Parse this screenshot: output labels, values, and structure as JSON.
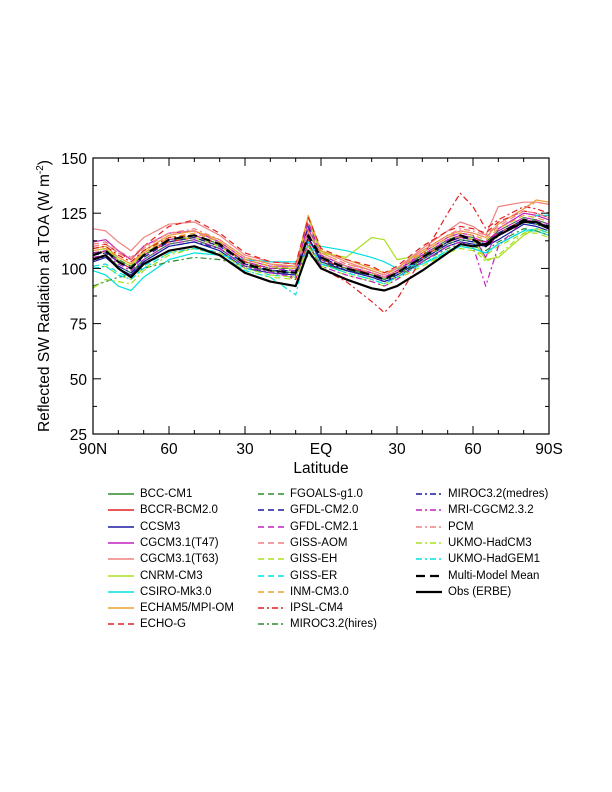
{
  "chart_data": {
    "type": "line",
    "ylabel_main": "Reflected SW Radiation at TOA (W m",
    "ylabel_sup": "-2",
    "ylabel_end": ")",
    "xlabel": "Latitude",
    "x_ticks": [
      {
        "x": 90,
        "label": "90N"
      },
      {
        "x": 60,
        "label": "60"
      },
      {
        "x": 30,
        "label": "30"
      },
      {
        "x": 0,
        "label": "EQ"
      },
      {
        "x": -30,
        "label": "30"
      },
      {
        "x": -60,
        "label": "60"
      },
      {
        "x": -90,
        "label": "90S"
      }
    ],
    "y_ticks": [
      25,
      50,
      75,
      100,
      125,
      150
    ],
    "xlim": [
      90,
      -90
    ],
    "ylim": [
      25,
      150
    ],
    "grid": false,
    "legend_position": "below",
    "series": [
      {
        "name": "BCC-CM1",
        "color": "#2e8b2e",
        "dash": "",
        "values": [
          104,
          106,
          101,
          98,
          104,
          111,
          113,
          109,
          101,
          99,
          98,
          110,
          102,
          99,
          97,
          95,
          97,
          104,
          111,
          113,
          112,
          111,
          115,
          121,
          120,
          118
        ]
      },
      {
        "name": "BCCR-BCM2.0",
        "color": "#e02020",
        "dash": "",
        "values": [
          106,
          108,
          103,
          100,
          106,
          112,
          114,
          110,
          103,
          100,
          100,
          113,
          104,
          100,
          98,
          96,
          98,
          105,
          112,
          114,
          113,
          112,
          116,
          122,
          121,
          119
        ]
      },
      {
        "name": "CCSM3",
        "color": "#1a1aa0",
        "dash": "",
        "values": [
          103,
          105,
          100,
          97,
          103,
          110,
          112,
          108,
          100,
          98,
          97,
          114,
          103,
          99,
          96,
          94,
          96,
          103,
          110,
          112,
          111,
          110,
          113,
          120,
          119,
          117
        ]
      },
      {
        "name": "CGCM3.1(T47)",
        "color": "#c020c0",
        "dash": "",
        "values": [
          112,
          113,
          108,
          104,
          110,
          116,
          117,
          112,
          104,
          101,
          101,
          118,
          106,
          101,
          98,
          96,
          99,
          107,
          114,
          116,
          115,
          105,
          118,
          125,
          124,
          122
        ]
      },
      {
        "name": "CGCM3.1(T63)",
        "color": "#f08080",
        "dash": "",
        "values": [
          118,
          117,
          112,
          108,
          114,
          120,
          121,
          115,
          106,
          103,
          102,
          120,
          108,
          103,
          99,
          97,
          100,
          109,
          117,
          121,
          119,
          115,
          128,
          130,
          130,
          129
        ]
      },
      {
        "name": "CNRM-CM3",
        "color": "#a8e020",
        "dash": "",
        "values": [
          108,
          109,
          104,
          101,
          107,
          113,
          114,
          110,
          103,
          100,
          100,
          123,
          107,
          105,
          114,
          113,
          104,
          106,
          112,
          115,
          113,
          104,
          105,
          115,
          118,
          116
        ]
      },
      {
        "name": "CSIRO-Mk3.0",
        "color": "#00e0e0",
        "dash": "",
        "values": [
          99,
          97,
          92,
          90,
          96,
          104,
          107,
          106,
          104,
          103,
          103,
          107,
          110,
          108,
          105,
          103,
          100,
          102,
          107,
          110,
          109,
          107,
          111,
          117,
          117,
          115
        ]
      },
      {
        "name": "ECHAM5/MPI-OM",
        "color": "#e8a030",
        "dash": "",
        "values": [
          109,
          110,
          105,
          102,
          108,
          115,
          117,
          113,
          105,
          102,
          101,
          124,
          108,
          104,
          100,
          98,
          100,
          108,
          115,
          117,
          116,
          114,
          120,
          127,
          131,
          130
        ]
      },
      {
        "name": "ECHO-G",
        "color": "#e02020",
        "dash": "6,4",
        "values": [
          110,
          111,
          107,
          104,
          110,
          119,
          122,
          116,
          107,
          103,
          102,
          123,
          109,
          104,
          101,
          98,
          101,
          110,
          117,
          119,
          118,
          116,
          121,
          126,
          125,
          123
        ]
      },
      {
        "name": "FGOALS-g1.0",
        "color": "#2e8b2e",
        "dash": "6,4",
        "values": [
          107,
          108,
          104,
          101,
          106,
          113,
          115,
          111,
          103,
          100,
          100,
          116,
          106,
          101,
          98,
          96,
          99,
          106,
          113,
          115,
          114,
          112,
          117,
          123,
          122,
          120
        ]
      },
      {
        "name": "GFDL-CM2.0",
        "color": "#1a1aa0",
        "dash": "6,4",
        "values": [
          106,
          107,
          103,
          100,
          105,
          112,
          114,
          110,
          102,
          99,
          99,
          119,
          105,
          100,
          97,
          95,
          98,
          105,
          112,
          114,
          113,
          111,
          116,
          122,
          121,
          119
        ]
      },
      {
        "name": "GFDL-CM2.1",
        "color": "#c020c0",
        "dash": "6,4",
        "values": [
          107,
          108,
          103,
          100,
          106,
          113,
          115,
          111,
          103,
          100,
          99,
          121,
          106,
          101,
          98,
          96,
          99,
          106,
          113,
          115,
          114,
          112,
          117,
          123,
          122,
          120
        ]
      },
      {
        "name": "GISS-AOM",
        "color": "#f08080",
        "dash": "6,4",
        "values": [
          111,
          112,
          108,
          105,
          110,
          116,
          117,
          112,
          104,
          101,
          100,
          116,
          106,
          101,
          98,
          96,
          99,
          107,
          114,
          117,
          116,
          114,
          119,
          126,
          125,
          123
        ]
      },
      {
        "name": "GISS-EH",
        "color": "#a8e020",
        "dash": "6,4",
        "values": [
          100,
          101,
          97,
          95,
          100,
          107,
          109,
          106,
          99,
          96,
          95,
          110,
          101,
          97,
          94,
          92,
          95,
          101,
          107,
          109,
          108,
          106,
          110,
          116,
          116,
          114
        ]
      },
      {
        "name": "GISS-ER",
        "color": "#00e0e0",
        "dash": "6,4",
        "values": [
          101,
          102,
          98,
          96,
          101,
          108,
          110,
          107,
          100,
          97,
          96,
          111,
          102,
          98,
          95,
          93,
          96,
          102,
          108,
          110,
          109,
          107,
          111,
          117,
          124,
          124
        ]
      },
      {
        "name": "INM-CM3.0",
        "color": "#e8a030",
        "dash": "6,4",
        "values": [
          108,
          109,
          105,
          102,
          107,
          114,
          116,
          112,
          104,
          101,
          100,
          117,
          107,
          102,
          99,
          97,
          100,
          107,
          114,
          116,
          115,
          113,
          118,
          124,
          123,
          121
        ]
      },
      {
        "name": "IPSL-CM4",
        "color": "#e02020",
        "dash": "6,3,2,3",
        "values": [
          109,
          110,
          106,
          103,
          108,
          114,
          115,
          111,
          103,
          99,
          95,
          112,
          100,
          94,
          85,
          80,
          86,
          105,
          125,
          134,
          128,
          118,
          122,
          128,
          127,
          125
        ]
      },
      {
        "name": "MIROC3.2(hires)",
        "color": "#2e8b2e",
        "dash": "6,3,2,3",
        "values": [
          92,
          94,
          96,
          97,
          100,
          103,
          105,
          104,
          101,
          99,
          98,
          106,
          103,
          100,
          97,
          95,
          97,
          103,
          109,
          111,
          110,
          108,
          112,
          118,
          117,
          115
        ]
      },
      {
        "name": "MIROC3.2(medres)",
        "color": "#1a1aa0",
        "dash": "6,3,2,3",
        "values": [
          104,
          105,
          101,
          98,
          103,
          110,
          112,
          109,
          101,
          98,
          98,
          114,
          104,
          99,
          96,
          94,
          97,
          104,
          111,
          113,
          112,
          110,
          115,
          121,
          120,
          118
        ]
      },
      {
        "name": "MRI-CGCM2.3.2",
        "color": "#c020c0",
        "dash": "6,3,2,3",
        "values": [
          105,
          106,
          102,
          99,
          104,
          111,
          113,
          109,
          101,
          98,
          96,
          111,
          101,
          97,
          94,
          92,
          95,
          103,
          110,
          112,
          110,
          92,
          110,
          122,
          121,
          119
        ]
      },
      {
        "name": "PCM",
        "color": "#f08080",
        "dash": "6,3,2,3",
        "values": [
          110,
          111,
          107,
          104,
          109,
          116,
          118,
          113,
          105,
          102,
          101,
          117,
          107,
          102,
          99,
          97,
          100,
          108,
          115,
          118,
          117,
          115,
          120,
          127,
          130,
          129
        ]
      },
      {
        "name": "UKMO-HadCM3",
        "color": "#a8e020",
        "dash": "6,3,2,3",
        "values": [
          91,
          95,
          94,
          93,
          99,
          106,
          109,
          107,
          100,
          97,
          96,
          110,
          102,
          98,
          95,
          93,
          96,
          102,
          108,
          110,
          109,
          103,
          106,
          116,
          118,
          117
        ]
      },
      {
        "name": "UKMO-HadGEM1",
        "color": "#00e0e0",
        "dash": "6,3,2,3",
        "values": [
          100,
          101,
          97,
          95,
          100,
          107,
          109,
          106,
          99,
          96,
          88,
          112,
          102,
          98,
          95,
          93,
          96,
          102,
          108,
          110,
          109,
          107,
          111,
          117,
          118,
          116
        ]
      },
      {
        "name": "Multi-Model Mean",
        "color": "#000000",
        "dash": "9,5",
        "values": [
          106,
          108,
          103,
          100,
          106,
          113,
          115,
          111,
          102,
          99,
          98,
          115,
          105,
          100,
          97,
          95,
          98,
          105,
          112,
          115,
          113,
          110,
          115,
          122,
          121,
          119
        ]
      },
      {
        "name": "Obs (ERBE)",
        "color": "#000000",
        "dash": "",
        "values": [
          104,
          106,
          100,
          96,
          102,
          108,
          110,
          106,
          98,
          94,
          92,
          108,
          100,
          95,
          91,
          90,
          92,
          99,
          107,
          111,
          110,
          111,
          115,
          121,
          121,
          118
        ]
      }
    ],
    "x_values": [
      90,
      85,
      80,
      75,
      70,
      60,
      50,
      40,
      30,
      20,
      10,
      5,
      0,
      -10,
      -20,
      -25,
      -30,
      -40,
      -50,
      -55,
      -60,
      -65,
      -70,
      -80,
      -85,
      -90
    ]
  }
}
